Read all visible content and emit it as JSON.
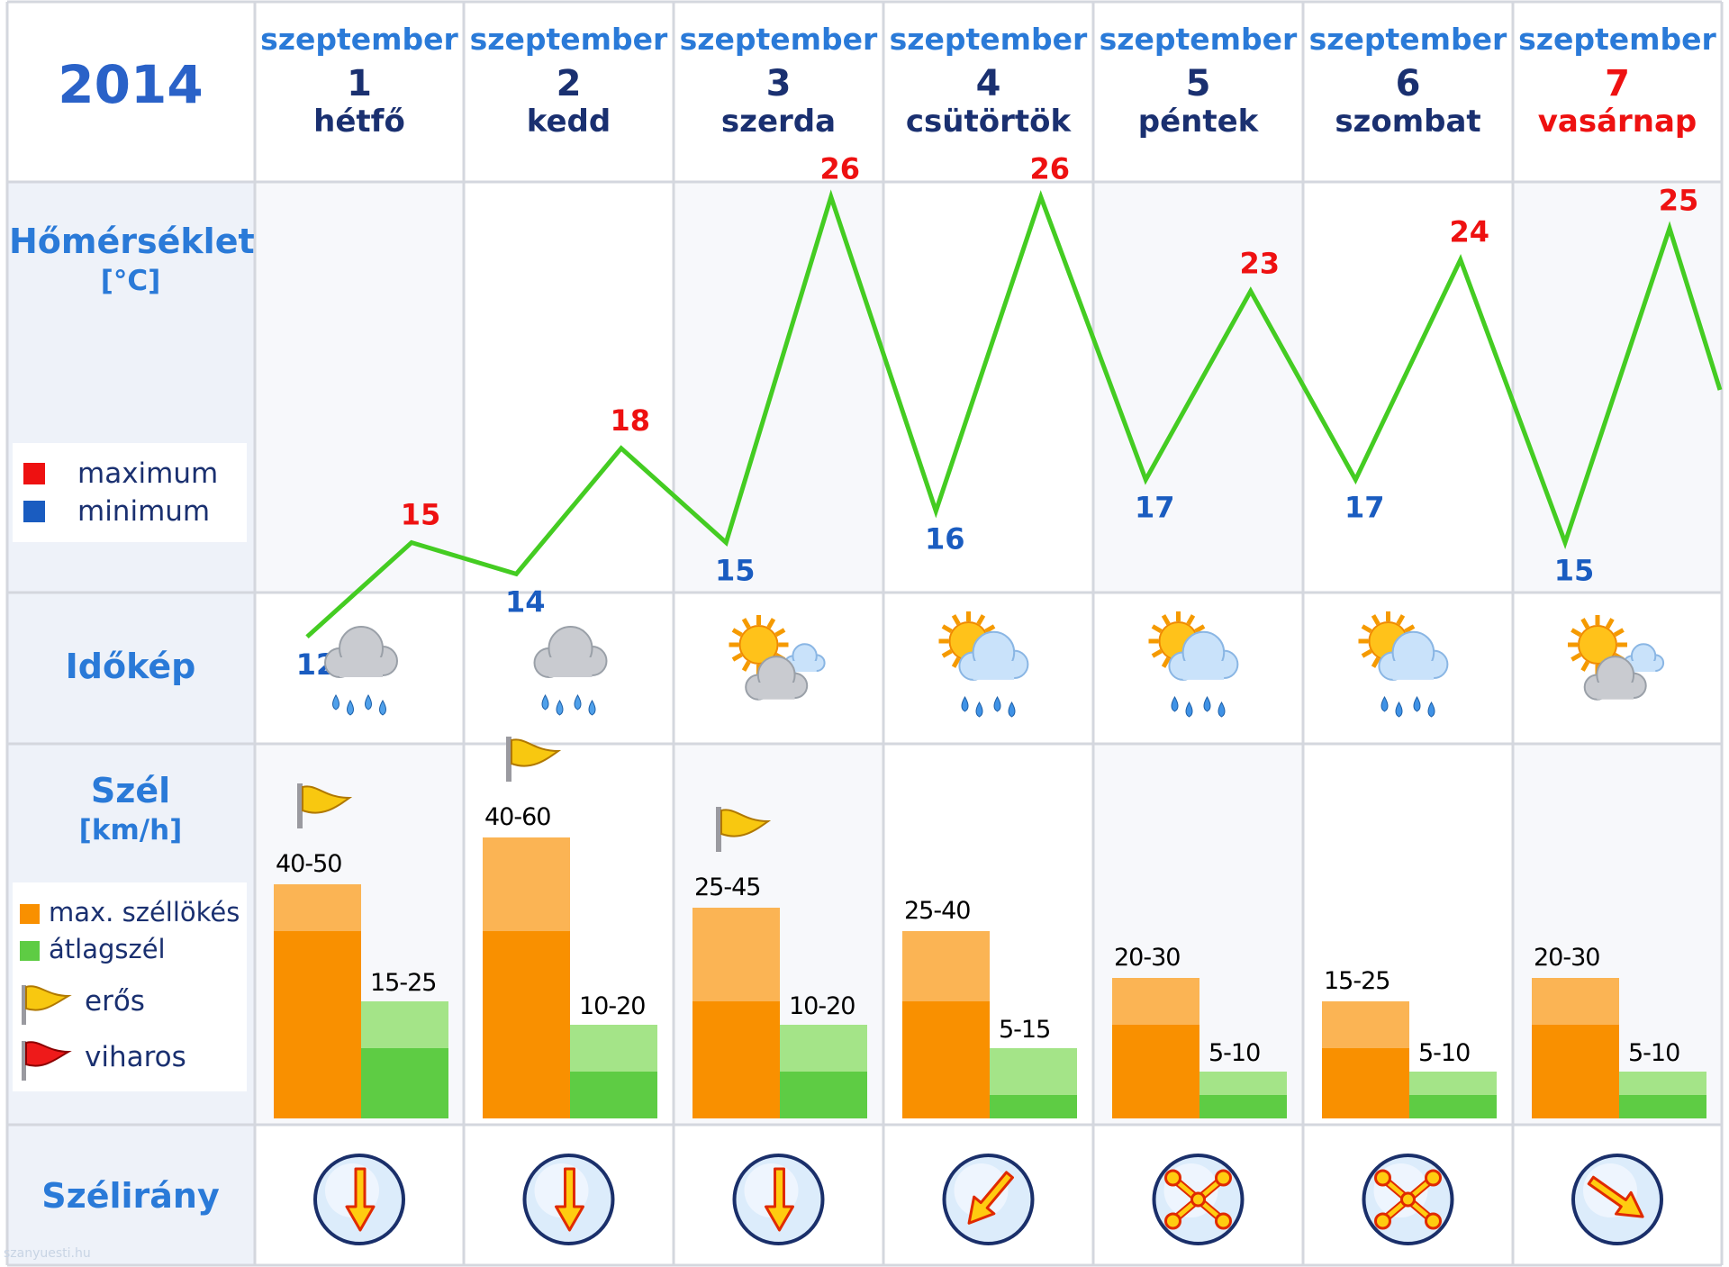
{
  "header": {
    "year": "2014",
    "days": [
      {
        "month": "szeptember",
        "day": "1",
        "weekday": "hétfő"
      },
      {
        "month": "szeptember",
        "day": "2",
        "weekday": "kedd"
      },
      {
        "month": "szeptember",
        "day": "3",
        "weekday": "szerda"
      },
      {
        "month": "szeptember",
        "day": "4",
        "weekday": "csütörtök"
      },
      {
        "month": "szeptember",
        "day": "5",
        "weekday": "péntek"
      },
      {
        "month": "szeptember",
        "day": "6",
        "weekday": "szombat"
      },
      {
        "month": "szeptember",
        "day": "7",
        "weekday": "vasárnap"
      }
    ]
  },
  "rows": {
    "temperature": {
      "label": "Hőmérséklet",
      "unit": "[°C]"
    },
    "weather": {
      "label": "Időkép"
    },
    "wind": {
      "label": "Szél",
      "unit": "[km/h]"
    },
    "direction": {
      "label": "Szélirány"
    }
  },
  "legend": {
    "maximum": "maximum",
    "minimum": "minimum",
    "gust": "max. széllökés",
    "average": "átlagszél",
    "strong": "erős",
    "stormy": "viharos"
  },
  "weather_icons": [
    "rain-cloud-icon",
    "rain-cloud-icon",
    "partly-cloudy-icon",
    "sun-rain-cloud-icon",
    "sun-rain-cloud-icon",
    "sun-rain-cloud-icon",
    "partly-cloudy-icon"
  ],
  "direction_icons": [
    "arrow-south-icon",
    "arrow-south-icon",
    "arrow-south-icon",
    "arrow-southwest-icon",
    "variable-wind-icon",
    "variable-wind-icon",
    "arrow-southeast-icon"
  ],
  "colors": {
    "max": "#ee1111",
    "min": "#1a5cc0",
    "line": "#44cc22",
    "gust": "#f99000",
    "gust_light": "#fbb454",
    "avg": "#5ecc44",
    "avg_light": "#a4e488",
    "label_blue": "#2a7ad8",
    "panel": "#eef2f9",
    "cell_alt": "#f7f8fb",
    "grid": "#d4d7de"
  },
  "watermark": "szanyuesti.hu",
  "chart_data": [
    {
      "type": "line",
      "x": [
        "szeptember 1",
        "szeptember 2",
        "szeptember 3",
        "szeptember 4",
        "szeptember 5",
        "szeptember 6",
        "szeptember 7"
      ],
      "series": [
        {
          "name": "maximum",
          "values": [
            15,
            18,
            26,
            26,
            23,
            24,
            25
          ]
        },
        {
          "name": "minimum",
          "values": [
            12,
            14,
            15,
            16,
            17,
            17,
            15
          ]
        }
      ],
      "ylabel": "Hőmérséklet [°C]"
    },
    {
      "type": "bar",
      "categories": [
        "szeptember 1",
        "szeptember 2",
        "szeptember 3",
        "szeptember 4",
        "szeptember 5",
        "szeptember 6",
        "szeptember 7"
      ],
      "series": [
        {
          "name": "max. széllökés",
          "ranges": [
            [
              40,
              50
            ],
            [
              40,
              60
            ],
            [
              25,
              45
            ],
            [
              25,
              40
            ],
            [
              20,
              30
            ],
            [
              15,
              25
            ],
            [
              20,
              30
            ]
          ],
          "labels": [
            "40-50",
            "40-60",
            "25-45",
            "25-40",
            "20-30",
            "15-25",
            "20-30"
          ]
        },
        {
          "name": "átlagszél",
          "ranges": [
            [
              15,
              25
            ],
            [
              10,
              20
            ],
            [
              10,
              20
            ],
            [
              5,
              15
            ],
            [
              5,
              10
            ],
            [
              5,
              10
            ],
            [
              5,
              10
            ]
          ],
          "labels": [
            "15-25",
            "10-20",
            "10-20",
            "5-15",
            "5-10",
            "5-10",
            "5-10"
          ]
        }
      ],
      "flags": [
        "erős",
        "erős",
        "erős",
        null,
        null,
        null,
        null
      ],
      "ylabel": "Szél [km/h]"
    }
  ]
}
